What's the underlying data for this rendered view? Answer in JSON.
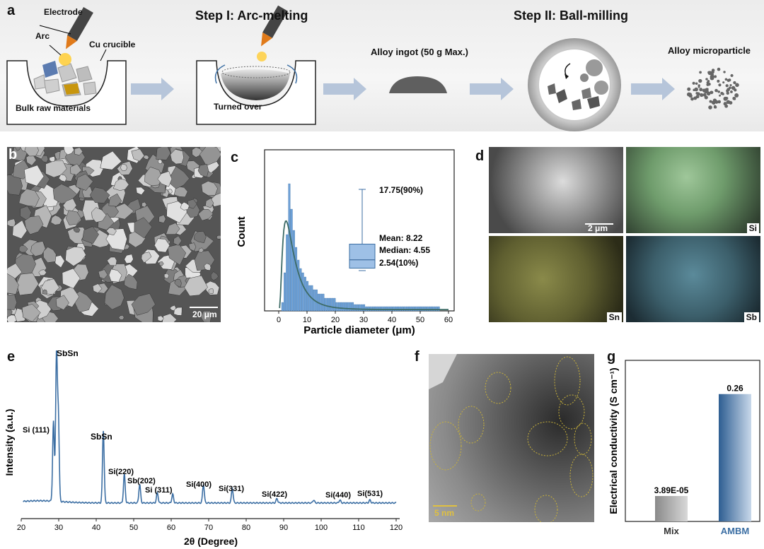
{
  "panel_a": {
    "label": "a",
    "electrode": "Electrode",
    "arc": "Arc",
    "cu_crucible": "Cu crucible",
    "bulk_raw": "Bulk raw materials",
    "step1": "Step I: Arc-melting",
    "turned_over": "Turned over",
    "ingot": "Alloy ingot (50 g Max.)",
    "step2": "Step II: Ball-milling",
    "microparticle": "Alloy microparticle"
  },
  "panel_b": {
    "label": "b",
    "scale": "20 μm"
  },
  "panel_c": {
    "label": "c",
    "chart_data": {
      "type": "bar",
      "title": "",
      "xlabel": "Particle diameter (μm)",
      "ylabel": "Count",
      "xlim": [
        -5,
        62
      ],
      "xticks": [
        0,
        10,
        20,
        30,
        40,
        50,
        60
      ],
      "bin_width": 0.8,
      "bins_start": 1,
      "counts": [
        2,
        9,
        18,
        30,
        24,
        19,
        15,
        12,
        10,
        9,
        8,
        7,
        6,
        6,
        5,
        5,
        4,
        4,
        4,
        3,
        3,
        3,
        3,
        3,
        2,
        2,
        2,
        2,
        2,
        2,
        2,
        2,
        1.5,
        1.5,
        1.5,
        1.5,
        1.5,
        1,
        1,
        1,
        1,
        1,
        1,
        1,
        1,
        1,
        1,
        1,
        1,
        1,
        1,
        1,
        1,
        1,
        1,
        1,
        1,
        1,
        1,
        1,
        1,
        1,
        1,
        1,
        1,
        1,
        1,
        1,
        1,
        1
      ],
      "fit_peak": 3.2,
      "box": {
        "p10": 2.54,
        "median": 4.55,
        "mean": 8.22,
        "p90": 17.75
      },
      "annotations": {
        "p90": "17.75(90%)",
        "mean": "Mean: 8.22",
        "median": "Median: 4.55",
        "p10": "2.54(10%)"
      }
    }
  },
  "panel_d": {
    "label": "d",
    "scale": "2 μm",
    "si": "Si",
    "sn": "Sn",
    "sb": "Sb"
  },
  "panel_e": {
    "label": "e",
    "chart_data": {
      "type": "line",
      "xlabel": "2θ (Degree)",
      "ylabel": "Intensity (a.u.)",
      "xlim": [
        20,
        120
      ],
      "xticks": [
        20,
        30,
        40,
        50,
        60,
        70,
        80,
        90,
        100,
        110,
        120
      ],
      "baseline": 4,
      "peaks": [
        {
          "x": 28.6,
          "h": 55
        },
        {
          "x": 29.4,
          "h": 100
        },
        {
          "x": 29.9,
          "h": 58
        },
        {
          "x": 41.9,
          "h": 50
        },
        {
          "x": 47.5,
          "h": 20
        },
        {
          "x": 51.6,
          "h": 13
        },
        {
          "x": 56.3,
          "h": 7
        },
        {
          "x": 60.4,
          "h": 6
        },
        {
          "x": 68.6,
          "h": 13
        },
        {
          "x": 76.3,
          "h": 10
        },
        {
          "x": 88.2,
          "h": 3
        },
        {
          "x": 105.0,
          "h": 2
        },
        {
          "x": 98.0,
          "h": 2
        },
        {
          "x": 113.0,
          "h": 2
        }
      ],
      "annotations": [
        "SbSn",
        "Si (111)",
        "SbSn",
        "Si(220)",
        "Sb(202)",
        "Si (311)",
        "Si(400)",
        "Si(331)",
        "Si(422)",
        "Si(440)",
        "Si(531)"
      ]
    }
  },
  "panel_f": {
    "label": "f",
    "scale": "5 nm"
  },
  "panel_g": {
    "label": "g",
    "chart_data": {
      "type": "bar",
      "ylabel": "Electrical conductivity (S cm⁻¹)",
      "categories": [
        "Mix",
        "AMBM"
      ],
      "values": [
        3.89e-05,
        0.26
      ],
      "value_labels": [
        "3.89E-05",
        "0.26"
      ],
      "ylim": [
        0,
        0.3
      ],
      "colors": [
        "#9a9a9a",
        "#3b6ea3"
      ]
    }
  }
}
